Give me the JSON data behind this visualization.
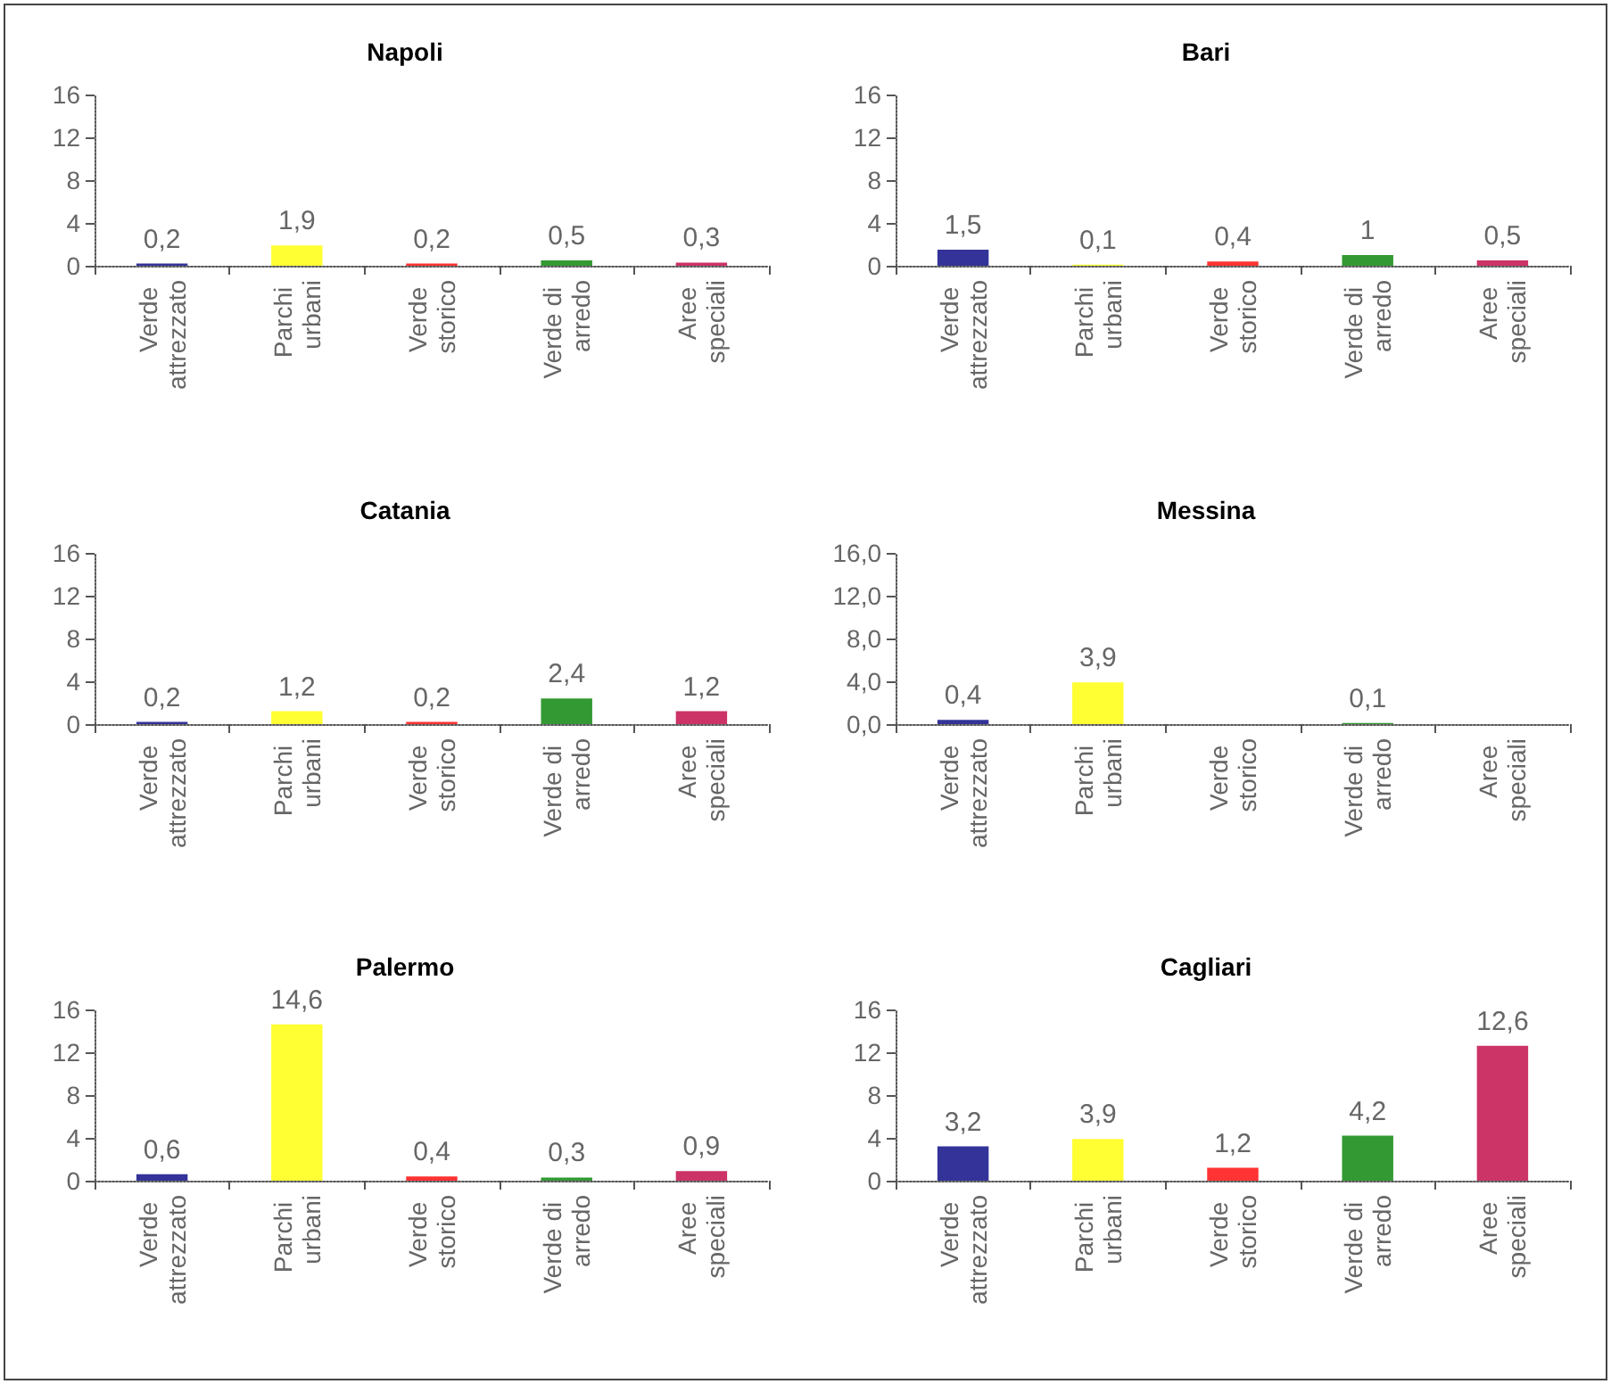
{
  "chart_data": [
    {
      "type": "bar",
      "title": "Napoli",
      "categories": [
        "Verde attrezzato",
        "Parchi urbani",
        "Verde storico",
        "Verde di arredo",
        "Aree speciali"
      ],
      "values": [
        0.2,
        1.9,
        0.2,
        0.5,
        0.3
      ],
      "value_labels": [
        "0,2",
        "1,9",
        "0,2",
        "0,5",
        "0,3"
      ],
      "colors": [
        "#333399",
        "#ffff33",
        "#ff3333",
        "#339933",
        "#cc3366"
      ],
      "ylim": [
        0,
        16
      ],
      "yticks": [
        0,
        4,
        8,
        12,
        16
      ],
      "grid": false
    },
    {
      "type": "bar",
      "title": "Bari",
      "categories": [
        "Verde attrezzato",
        "Parchi urbani",
        "Verde storico",
        "Verde di arredo",
        "Aree speciali"
      ],
      "values": [
        1.5,
        0.1,
        0.4,
        1,
        0.5
      ],
      "value_labels": [
        "1,5",
        "0,1",
        "0,4",
        "1",
        "0,5"
      ],
      "colors": [
        "#333399",
        "#ffff33",
        "#ff3333",
        "#339933",
        "#cc3366"
      ],
      "ylim": [
        0,
        16
      ],
      "yticks": [
        0,
        4,
        8,
        12,
        16
      ],
      "grid": false
    },
    {
      "type": "bar",
      "title": "Catania",
      "categories": [
        "Verde attrezzato",
        "Parchi urbani",
        "Verde storico",
        "Verde di arredo",
        "Aree speciali"
      ],
      "values": [
        0.2,
        1.2,
        0.2,
        2.4,
        1.2
      ],
      "value_labels": [
        "0,2",
        "1,2",
        "0,2",
        "2,4",
        "1,2"
      ],
      "colors": [
        "#333399",
        "#ffff33",
        "#ff3333",
        "#339933",
        "#cc3366"
      ],
      "ylim": [
        0,
        16
      ],
      "yticks": [
        0,
        4,
        8,
        12,
        16
      ],
      "grid": false
    },
    {
      "type": "bar",
      "title": "Messina",
      "categories": [
        "Verde attrezzato",
        "Parchi urbani",
        "Verde storico",
        "Verde di arredo",
        "Aree speciali"
      ],
      "values": [
        0.4,
        3.9,
        null,
        0.1,
        null
      ],
      "value_labels": [
        "0,4",
        "3,9",
        null,
        "0,1",
        null
      ],
      "colors": [
        "#333399",
        "#ffff33",
        "#ff3333",
        "#339933",
        "#cc3366"
      ],
      "ylim": [
        0,
        16
      ],
      "yticks": [
        {
          "value": 0,
          "label": "0,0"
        },
        {
          "value": 4,
          "label": "4,0"
        },
        {
          "value": 8,
          "label": "8,0"
        },
        {
          "value": 12,
          "label": "12,0"
        },
        {
          "value": 16,
          "label": "16,0"
        }
      ],
      "grid": false
    },
    {
      "type": "bar",
      "title": "Palermo",
      "categories": [
        "Verde attrezzato",
        "Parchi urbani",
        "Verde storico",
        "Verde di arredo",
        "Aree speciali"
      ],
      "values": [
        0.6,
        14.6,
        0.4,
        0.3,
        0.9
      ],
      "value_labels": [
        "0,6",
        "14,6",
        "0,4",
        "0,3",
        "0,9"
      ],
      "colors": [
        "#333399",
        "#ffff33",
        "#ff3333",
        "#339933",
        "#cc3366"
      ],
      "ylim": [
        0,
        16
      ],
      "yticks": [
        0,
        4,
        8,
        12,
        16
      ],
      "grid": false
    },
    {
      "type": "bar",
      "title": "Cagliari",
      "categories": [
        "Verde attrezzato",
        "Parchi urbani",
        "Verde storico",
        "Verde di arredo",
        "Aree speciali"
      ],
      "values": [
        3.2,
        3.9,
        1.2,
        4.2,
        12.6
      ],
      "value_labels": [
        "3,2",
        "3,9",
        "1,2",
        "4,2",
        "12,6"
      ],
      "colors": [
        "#333399",
        "#ffff33",
        "#ff3333",
        "#339933",
        "#cc3366"
      ],
      "ylim": [
        0,
        16
      ],
      "yticks": [
        0,
        4,
        8,
        12,
        16
      ],
      "grid": false
    }
  ]
}
